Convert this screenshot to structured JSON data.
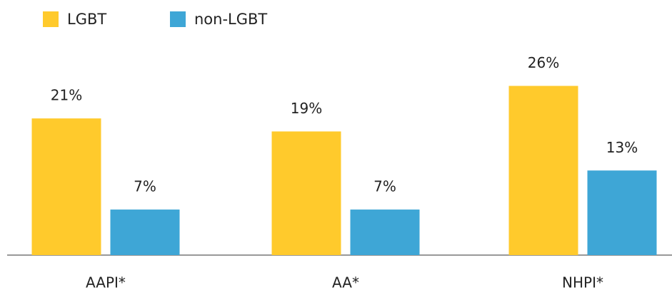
{
  "chart_data": {
    "type": "bar",
    "categories": [
      "AAPI*",
      "AA*",
      "NHPI*"
    ],
    "series": [
      {
        "name": "LGBT",
        "color": "#ffca2c",
        "values": [
          21,
          19,
          26
        ],
        "value_labels": [
          "21%",
          "19%",
          "26%"
        ]
      },
      {
        "name": "non-LGBT",
        "color": "#3ea6d6",
        "values": [
          7,
          7,
          13
        ],
        "value_labels": [
          "7%",
          "7%",
          "13%"
        ]
      }
    ],
    "ylim": [
      0,
      30
    ],
    "legend": "top-left"
  }
}
